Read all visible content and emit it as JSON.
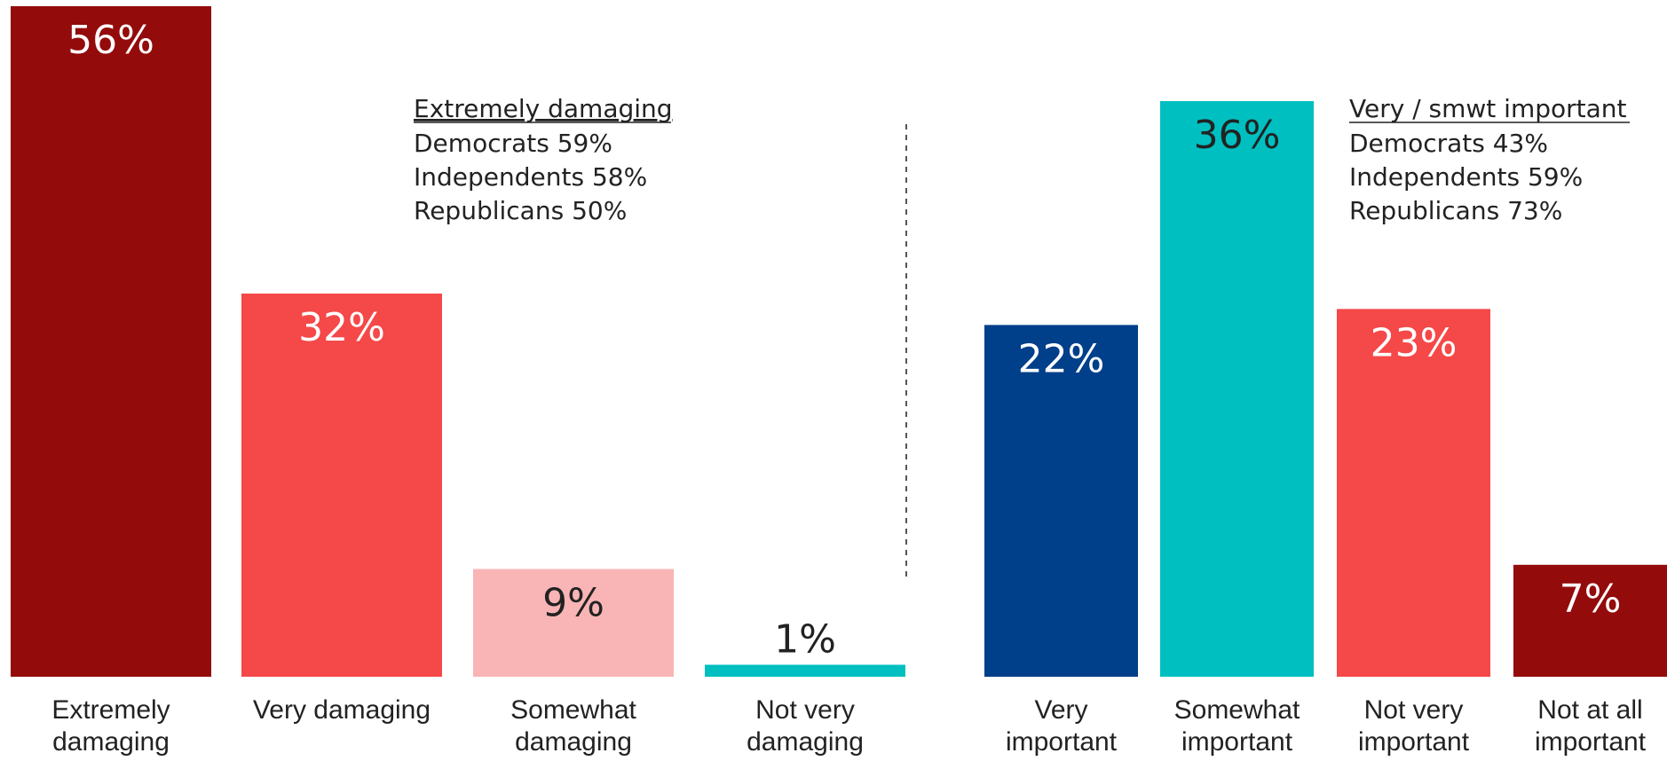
{
  "chart_data": [
    {
      "type": "bar",
      "categories": [
        "Extremely damaging",
        "Very damaging",
        "Somewhat damaging",
        "Not very damaging"
      ],
      "values": [
        56,
        32,
        9,
        1
      ],
      "value_labels": [
        "56%",
        "32%",
        "9%",
        "1%"
      ],
      "colors": [
        "#930b0b",
        "#f54848",
        "#f9b5b5",
        "#00bfc0"
      ],
      "ylim": [
        0,
        56
      ],
      "annotation": {
        "heading": "Extremely damaging",
        "lines": [
          "Democrats 59%",
          "Independents 58%",
          "Republicans 50%"
        ]
      }
    },
    {
      "type": "bar",
      "categories": [
        "Very important",
        "Somewhat important",
        "Not very important",
        "Not at all important"
      ],
      "values": [
        22,
        36,
        23,
        7
      ],
      "value_labels": [
        "22%",
        "36%",
        "23%",
        "7%"
      ],
      "colors": [
        "#003f8a",
        "#00bfc0",
        "#f54848",
        "#930b0b"
      ],
      "ylim": [
        0,
        36
      ],
      "annotation": {
        "heading": "Very / smwt important",
        "lines": [
          "Democrats 43%",
          "Independents 59%",
          "Republicans 73%"
        ]
      }
    }
  ]
}
